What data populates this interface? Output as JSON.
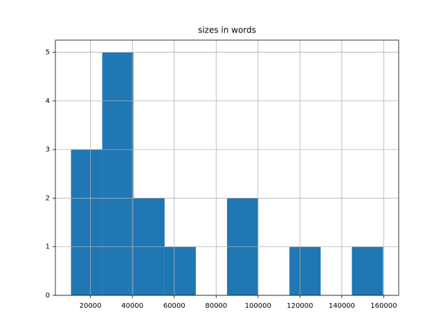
{
  "chart_data": {
    "type": "histogram",
    "title": "sizes in words",
    "bins": [
      10700,
      25600,
      40500,
      55400,
      70300,
      85200,
      100100,
      115000,
      129900,
      144800,
      159700
    ],
    "values": [
      3,
      5,
      2,
      1,
      0,
      2,
      0,
      1,
      0,
      1
    ],
    "color": "#1f77b4",
    "xlim": [
      3250,
      167150
    ],
    "xticks": [
      20000,
      40000,
      60000,
      80000,
      100000,
      120000,
      140000,
      160000
    ],
    "ylim": [
      0,
      5.25
    ],
    "yticks": [
      0,
      1,
      2,
      3,
      4,
      5
    ],
    "grid": true
  }
}
